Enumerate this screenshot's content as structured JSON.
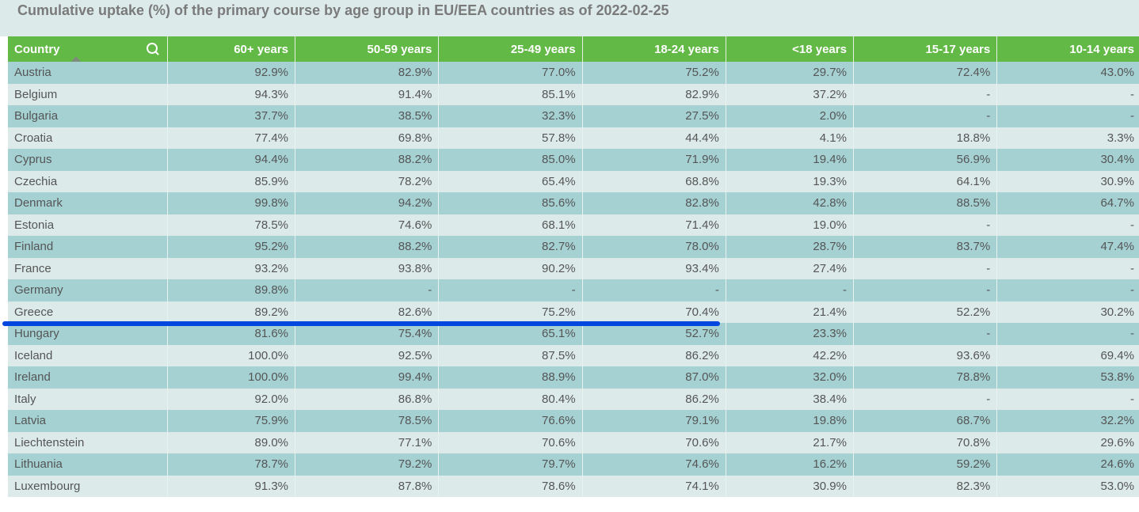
{
  "title": "Cumulative uptake (%) of the primary course by age group in EU/EEA countries as of 2022-02-25",
  "headers": [
    "Country",
    "60+ years",
    "50-59 years",
    "25-49 years",
    "18-24 years",
    "<18 years",
    "15-17 years",
    "10-14 years"
  ],
  "rows": [
    [
      "Austria",
      "92.9%",
      "82.9%",
      "77.0%",
      "75.2%",
      "29.7%",
      "72.4%",
      "43.0%"
    ],
    [
      "Belgium",
      "94.3%",
      "91.4%",
      "85.1%",
      "82.9%",
      "37.2%",
      "-",
      "-"
    ],
    [
      "Bulgaria",
      "37.7%",
      "38.5%",
      "32.3%",
      "27.5%",
      "2.0%",
      "-",
      "-"
    ],
    [
      "Croatia",
      "77.4%",
      "69.8%",
      "57.8%",
      "44.4%",
      "4.1%",
      "18.8%",
      "3.3%"
    ],
    [
      "Cyprus",
      "94.4%",
      "88.2%",
      "85.0%",
      "71.9%",
      "19.4%",
      "56.9%",
      "30.4%"
    ],
    [
      "Czechia",
      "85.9%",
      "78.2%",
      "65.4%",
      "68.8%",
      "19.3%",
      "64.1%",
      "30.9%"
    ],
    [
      "Denmark",
      "99.8%",
      "94.2%",
      "85.6%",
      "82.8%",
      "42.8%",
      "88.5%",
      "64.7%"
    ],
    [
      "Estonia",
      "78.5%",
      "74.6%",
      "68.1%",
      "71.4%",
      "19.0%",
      "-",
      "-"
    ],
    [
      "Finland",
      "95.2%",
      "88.2%",
      "82.7%",
      "78.0%",
      "28.7%",
      "83.7%",
      "47.4%"
    ],
    [
      "France",
      "93.2%",
      "93.8%",
      "90.2%",
      "93.4%",
      "27.4%",
      "-",
      "-"
    ],
    [
      "Germany",
      "89.8%",
      "-",
      "-",
      "-",
      "-",
      "-",
      "-"
    ],
    [
      "Greece",
      "89.2%",
      "82.6%",
      "75.2%",
      "70.4%",
      "21.4%",
      "52.2%",
      "30.2%"
    ],
    [
      "Hungary",
      "81.6%",
      "75.4%",
      "65.1%",
      "52.7%",
      "23.3%",
      "-",
      "-"
    ],
    [
      "Iceland",
      "100.0%",
      "92.5%",
      "87.5%",
      "86.2%",
      "42.2%",
      "93.6%",
      "69.4%"
    ],
    [
      "Ireland",
      "100.0%",
      "99.4%",
      "88.9%",
      "87.0%",
      "32.0%",
      "78.8%",
      "53.8%"
    ],
    [
      "Italy",
      "92.0%",
      "86.8%",
      "80.4%",
      "86.2%",
      "38.4%",
      "-",
      "-"
    ],
    [
      "Latvia",
      "75.9%",
      "78.5%",
      "76.6%",
      "79.1%",
      "19.8%",
      "68.7%",
      "32.2%"
    ],
    [
      "Liechtenstein",
      "89.0%",
      "77.1%",
      "70.6%",
      "70.6%",
      "21.7%",
      "70.8%",
      "29.6%"
    ],
    [
      "Lithuania",
      "78.7%",
      "79.2%",
      "79.7%",
      "74.6%",
      "16.2%",
      "59.2%",
      "24.6%"
    ],
    [
      "Luxembourg",
      "91.3%",
      "87.8%",
      "78.6%",
      "74.1%",
      "30.9%",
      "82.3%",
      "53.0%"
    ]
  ]
}
